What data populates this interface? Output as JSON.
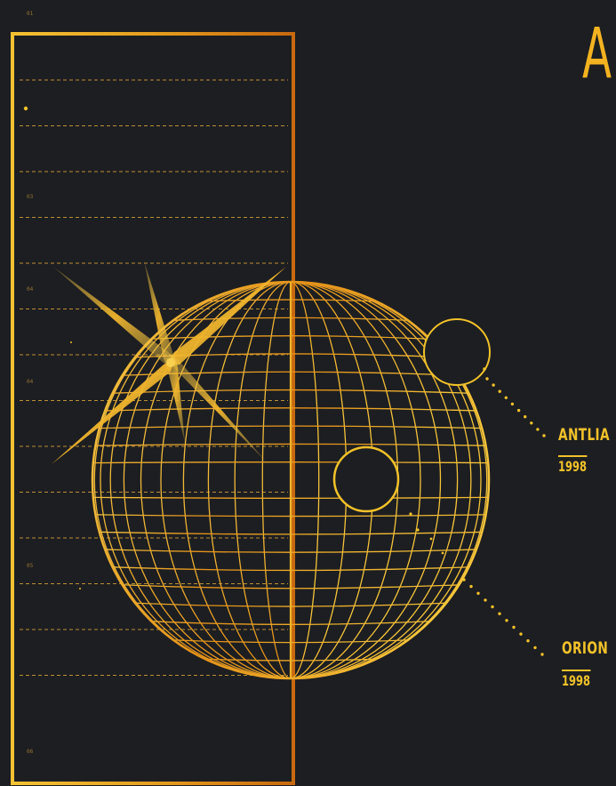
{
  "headline": "A",
  "callouts": [
    {
      "name": "ANTLIA",
      "year": "1998"
    },
    {
      "name": "ORION",
      "year": "1998"
    }
  ],
  "tick_labels": [
    "01",
    "03",
    "04",
    "04",
    "05",
    "06"
  ],
  "colors": {
    "background": "#1d1e21",
    "gold": "#f3b320",
    "gold_dark": "#c8750f",
    "gold_light": "#f7d050"
  }
}
